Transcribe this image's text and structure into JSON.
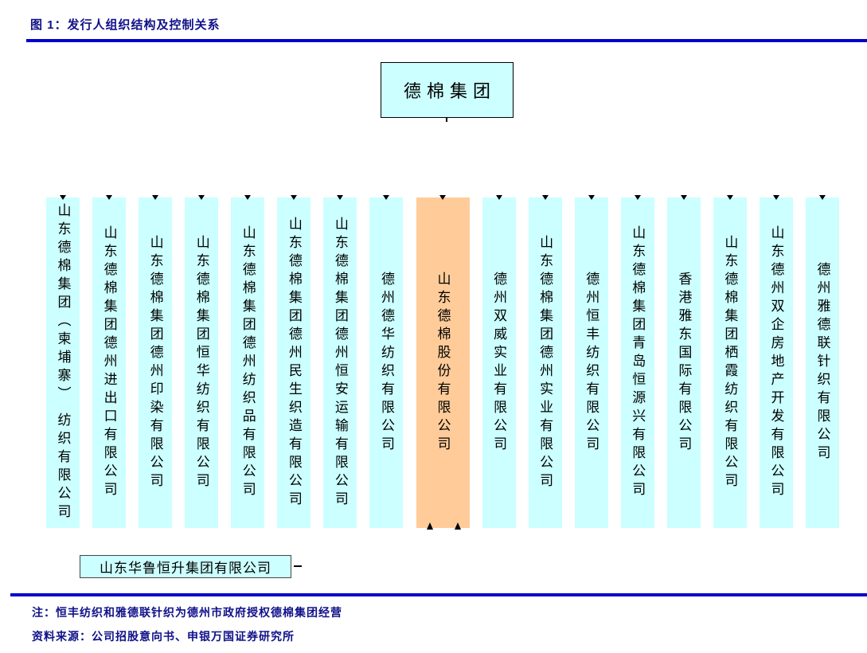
{
  "figure": {
    "title": "图 1：发行人组织结构及控制关系"
  },
  "org_chart": {
    "parent": {
      "name": "德棉集团"
    },
    "subsidiaries": [
      {
        "name": "山东德棉集团（柬埔寨） 纺织有限公司",
        "highlight": false
      },
      {
        "name": "山东德棉集团德州进出口有限公司",
        "highlight": false
      },
      {
        "name": "山东德棉集团德州印染有限公司",
        "highlight": false
      },
      {
        "name": "山东德棉集团恒华纺织有限公司",
        "highlight": false
      },
      {
        "name": "山东德棉集团德州纺织品有限公司",
        "highlight": false
      },
      {
        "name": "山东德棉集团德州民生织造有限公司",
        "highlight": false
      },
      {
        "name": "山东德棉集团德州恒安运输有限公司",
        "highlight": false
      },
      {
        "name": "德州德华纺织有限公司",
        "highlight": false
      },
      {
        "name": "山东德棉股份有限公司",
        "highlight": true
      },
      {
        "name": "德州双威实业有限公司",
        "highlight": false
      },
      {
        "name": "山东德棉集团德州实业有限公司",
        "highlight": false
      },
      {
        "name": "德州恒丰纺织有限公司",
        "highlight": false
      },
      {
        "name": "山东德棉集团青岛恒源兴有限公司",
        "highlight": false
      },
      {
        "name": "香港雅东国际有限公司",
        "highlight": false
      },
      {
        "name": "山东德棉集团栖霞纺织有限公司",
        "highlight": false
      },
      {
        "name": "山东德州双企房地产开发有限公司",
        "highlight": false
      },
      {
        "name": "德州雅德联针织有限公司",
        "highlight": false
      }
    ],
    "shareholder": {
      "name": "山东华鲁恒升集团有限公司"
    }
  },
  "footer": {
    "note": "注：恒丰纺织和雅德联针织为德州市政府授权德棉集团经营",
    "source": "资料来源：公司招股意向书、申银万国证券研究所"
  },
  "colors": {
    "box_fill": "#CCFFFF",
    "highlight_fill": "#FFCC99",
    "title_text": "#10108A",
    "rule": "#0000CC"
  }
}
